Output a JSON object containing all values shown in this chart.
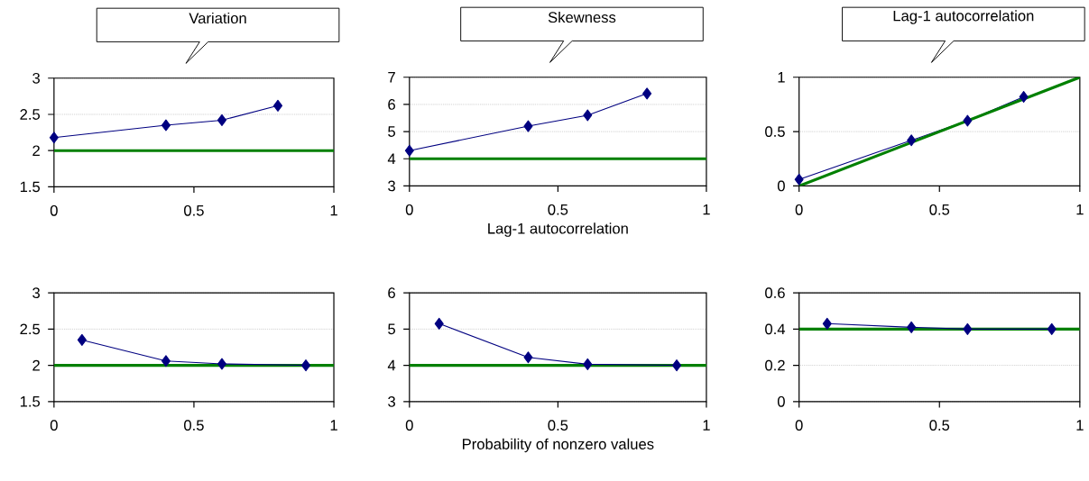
{
  "chart_data": [
    {
      "type": "line",
      "title": "Variation",
      "x": [
        0,
        0.4,
        0.6,
        0.8
      ],
      "series": [
        {
          "color": "#000080",
          "values": [
            2.18,
            2.35,
            2.42,
            2.62
          ]
        }
      ],
      "xlim": [
        0,
        1
      ],
      "ylim": [
        1.5,
        3
      ],
      "xticks": [
        0,
        0.5,
        1
      ],
      "yticks": [
        1.5,
        2,
        2.5,
        3
      ],
      "grid": "y",
      "marker": "diamond",
      "ref_lines": [
        {
          "axis": "y",
          "value": 2,
          "color": "#008000"
        }
      ]
    },
    {
      "type": "line",
      "title": "Skewness",
      "xlabel": "Lag-1 autocorrelation",
      "x": [
        0,
        0.4,
        0.6,
        0.8
      ],
      "series": [
        {
          "color": "#000080",
          "values": [
            4.3,
            5.2,
            5.6,
            6.4
          ]
        }
      ],
      "xlim": [
        0,
        1
      ],
      "ylim": [
        3,
        7
      ],
      "xticks": [
        0,
        0.5,
        1
      ],
      "yticks": [
        3,
        4,
        5,
        6,
        7
      ],
      "grid": "y",
      "marker": "diamond",
      "ref_lines": [
        {
          "axis": "y",
          "value": 4,
          "color": "#008000"
        }
      ]
    },
    {
      "type": "line",
      "title": "Lag-1 autocorrelation",
      "x": [
        0,
        0.4,
        0.6,
        0.8
      ],
      "series": [
        {
          "color": "#000080",
          "values": [
            0.06,
            0.42,
            0.6,
            0.82
          ]
        },
        {
          "color": "#008000",
          "x": [
            0,
            1
          ],
          "values": [
            0,
            1
          ],
          "marker": "none"
        }
      ],
      "xlim": [
        0,
        1
      ],
      "ylim": [
        0,
        1
      ],
      "xticks": [
        0,
        0.5,
        1
      ],
      "yticks": [
        0,
        0.5,
        1
      ],
      "grid": "y",
      "marker": "diamond"
    },
    {
      "type": "line",
      "x": [
        0.1,
        0.4,
        0.6,
        0.9
      ],
      "series": [
        {
          "color": "#000080",
          "values": [
            2.35,
            2.06,
            2.02,
            2.0
          ]
        }
      ],
      "xlim": [
        0,
        1
      ],
      "ylim": [
        1.5,
        3
      ],
      "xticks": [
        0,
        0.5,
        1
      ],
      "yticks": [
        1.5,
        2,
        2.5,
        3
      ],
      "grid": "y",
      "marker": "diamond",
      "ref_lines": [
        {
          "axis": "y",
          "value": 2,
          "color": "#008000"
        }
      ]
    },
    {
      "type": "line",
      "xlabel": "Probability of nonzero values",
      "x": [
        0.1,
        0.4,
        0.6,
        0.9
      ],
      "series": [
        {
          "color": "#000080",
          "values": [
            5.15,
            4.22,
            4.03,
            4.0
          ]
        }
      ],
      "xlim": [
        0,
        1
      ],
      "ylim": [
        3,
        6
      ],
      "xticks": [
        0,
        0.5,
        1
      ],
      "yticks": [
        3,
        4,
        5,
        6
      ],
      "grid": "y",
      "marker": "diamond",
      "ref_lines": [
        {
          "axis": "y",
          "value": 4,
          "color": "#008000"
        }
      ]
    },
    {
      "type": "line",
      "x": [
        0.1,
        0.4,
        0.6,
        0.9
      ],
      "series": [
        {
          "color": "#000080",
          "values": [
            0.43,
            0.41,
            0.4,
            0.4
          ]
        }
      ],
      "xlim": [
        0,
        1
      ],
      "ylim": [
        0,
        0.6
      ],
      "xticks": [
        0,
        0.5,
        1
      ],
      "yticks": [
        0,
        0.2,
        0.4,
        0.6
      ],
      "grid": "y",
      "marker": "diamond",
      "ref_lines": [
        {
          "axis": "y",
          "value": 0.4,
          "color": "#008000"
        }
      ]
    }
  ]
}
